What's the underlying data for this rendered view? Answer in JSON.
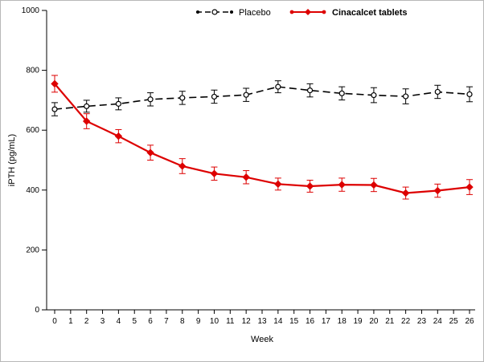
{
  "chart_data": {
    "type": "line",
    "title": "",
    "xlabel": "Week",
    "ylabel": "iPTH  (pg/mL)",
    "xlim": [
      0,
      26
    ],
    "ylim": [
      0,
      1000
    ],
    "xticks": [
      0,
      1,
      2,
      3,
      4,
      5,
      6,
      7,
      8,
      9,
      10,
      11,
      12,
      13,
      14,
      15,
      16,
      17,
      18,
      19,
      20,
      21,
      22,
      23,
      24,
      25,
      26
    ],
    "yticks": [
      0,
      200,
      400,
      600,
      800,
      1000
    ],
    "grid": false,
    "legend_position": "top",
    "x": [
      0,
      2,
      4,
      6,
      8,
      10,
      12,
      14,
      16,
      18,
      20,
      22,
      24,
      26
    ],
    "series": [
      {
        "name": "Placebo",
        "color": "#000000",
        "line_style": "dashed",
        "marker": "open-circle",
        "values": [
          670,
          680,
          688,
          703,
          708,
          712,
          718,
          745,
          733,
          723,
          717,
          713,
          728,
          720
        ],
        "errors": [
          22,
          20,
          20,
          22,
          22,
          22,
          22,
          20,
          22,
          22,
          25,
          25,
          22,
          25
        ]
      },
      {
        "name": "Cinacalcet tablets",
        "color": "#dd0000",
        "line_style": "solid",
        "marker": "filled-diamond",
        "values": [
          755,
          630,
          580,
          525,
          480,
          455,
          443,
          420,
          413,
          418,
          417,
          390,
          398,
          410
        ],
        "errors": [
          28,
          25,
          22,
          25,
          25,
          22,
          22,
          20,
          20,
          22,
          22,
          20,
          22,
          25
        ]
      }
    ]
  }
}
